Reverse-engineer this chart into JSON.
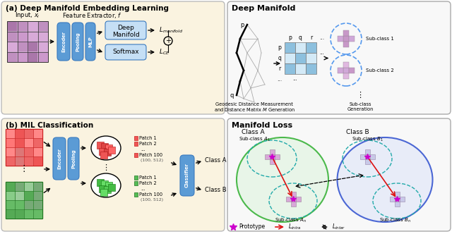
{
  "panel_a_bg": "#faf3e0",
  "panel_b_bg": "#faf3e0",
  "right_bg": "#f5f5f5",
  "encoder_color": "#5b9bd5",
  "box_border": "#3a7abf",
  "deep_manifold_box": "#c5dff5",
  "softmax_box": "#c5dff5",
  "classifier_color": "#5b9bd5",
  "green_ellipse": "#22aa22",
  "blue_ellipse": "#2255cc",
  "teal_dashed": "#22aaaa",
  "red_arrow": "#dd1111",
  "legend_star": "#cc00cc",
  "title_a": "(a) Deep Manifold Embedding Learning",
  "title_b": "(b) MIL Classification",
  "title_dm": "Deep Manifold",
  "title_ml": "Manifold Loss"
}
